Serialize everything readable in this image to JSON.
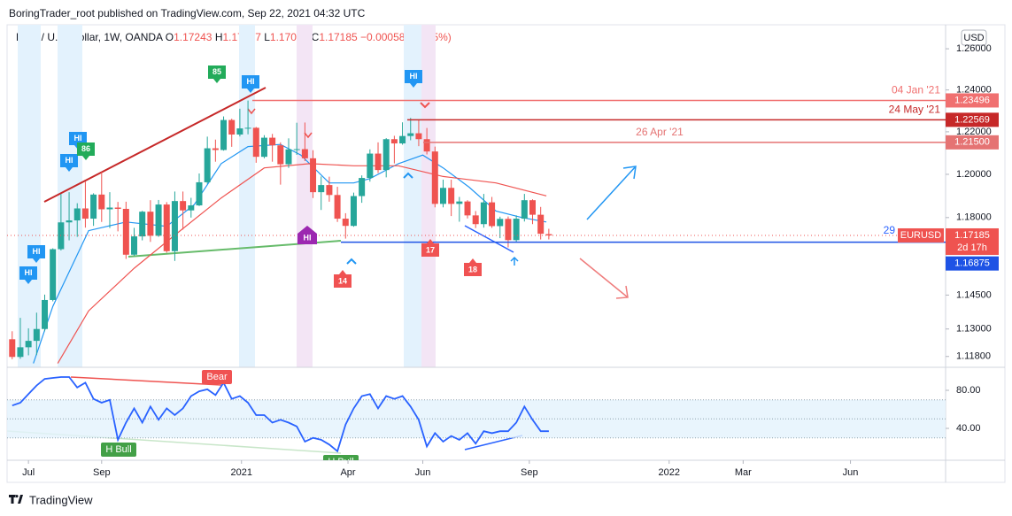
{
  "header": {
    "publisher": "BoringTrader_root published on TradingView.com, Sep 22, 2021 04:32 UTC"
  },
  "chart_data": {
    "type": "candlestick",
    "symbol": "Euro / U.S. Dollar, 1W, OANDA",
    "ohlc_prefixes": [
      "O",
      "H",
      "L",
      "C"
    ],
    "change_label": "−0.00058 (−0.05%)",
    "currency": "USD",
    "ticker": "EURUSD",
    "countdown": "2d 17h",
    "fragment": "29",
    "open": [
      1.1255,
      1.1178,
      1.122,
      1.1248,
      1.13,
      1.1428,
      1.1656,
      1.1778,
      1.1787,
      1.1842,
      1.1795,
      1.1906,
      1.1838,
      1.1846,
      1.184,
      1.1631,
      1.1714,
      1.1827,
      1.1717,
      1.186,
      1.1647,
      1.1876,
      1.1833,
      1.1856,
      1.1963,
      1.2122,
      1.2114,
      1.2256,
      1.2187,
      1.2216,
      1.2219,
      1.2082,
      1.2172,
      1.2136,
      1.2047,
      1.2117,
      1.2118,
      1.2075,
      1.1917,
      1.195,
      1.1904,
      1.1795,
      1.1762,
      1.1899,
      1.1983,
      1.2097,
      1.202,
      1.2165,
      1.2145,
      1.218,
      1.2193,
      1.2165,
      1.2107,
      1.1863,
      1.1937,
      1.1863,
      1.1874,
      1.181,
      1.177,
      1.187,
      1.1761,
      1.1794,
      1.1697,
      1.1795,
      1.188,
      1.1813,
      1.17243
    ],
    "high": [
      1.129,
      1.1349,
      1.1303,
      1.1372,
      1.1452,
      1.166,
      1.1909,
      1.1917,
      1.1866,
      1.1966,
      1.1912,
      1.2011,
      1.1917,
      1.1872,
      1.1873,
      1.1753,
      1.1831,
      1.188,
      1.1881,
      1.1871,
      1.192,
      1.192,
      1.1891,
      1.2004,
      1.2177,
      1.2163,
      1.2273,
      1.2262,
      1.231,
      1.2349,
      1.2223,
      1.2184,
      1.219,
      1.215,
      1.2169,
      1.2243,
      1.2244,
      1.2113,
      1.199,
      1.1989,
      1.1942,
      1.182,
      1.1915,
      1.1995,
      1.2117,
      1.215,
      1.217,
      1.2181,
      1.2245,
      1.2266,
      1.2254,
      1.2218,
      1.213,
      1.1975,
      1.1975,
      1.1895,
      1.188,
      1.183,
      1.1909,
      1.1895,
      1.1804,
      1.1805,
      1.181,
      1.1909,
      1.1884,
      1.1849,
      1.17487
    ],
    "low": [
      1.1168,
      1.117,
      1.1185,
      1.1186,
      1.129,
      1.1422,
      1.165,
      1.1696,
      1.1712,
      1.1754,
      1.1762,
      1.178,
      1.1752,
      1.1737,
      1.1612,
      1.1626,
      1.1696,
      1.1689,
      1.1712,
      1.164,
      1.1603,
      1.1745,
      1.18,
      1.1853,
      1.1956,
      1.2059,
      1.2111,
      1.2129,
      1.2178,
      1.2188,
      1.2054,
      1.2075,
      1.2059,
      1.1952,
      1.203,
      1.2091,
      1.2062,
      1.189,
      1.1835,
      1.1873,
      1.178,
      1.1704,
      1.1758,
      1.1868,
      1.1966,
      1.2006,
      1.1986,
      1.2051,
      1.2139,
      1.216,
      1.2132,
      1.2093,
      1.1847,
      1.1847,
      1.1807,
      1.1781,
      1.1796,
      1.1752,
      1.1754,
      1.1753,
      1.1706,
      1.1664,
      1.169,
      1.1782,
      1.177,
      1.17,
      1.17002
    ],
    "close": [
      1.1178,
      1.122,
      1.1248,
      1.13,
      1.1428,
      1.1656,
      1.1778,
      1.1787,
      1.1842,
      1.1795,
      1.1906,
      1.1838,
      1.1846,
      1.184,
      1.1631,
      1.1714,
      1.1827,
      1.1717,
      1.186,
      1.1647,
      1.1876,
      1.1833,
      1.1856,
      1.1963,
      1.2122,
      1.2114,
      1.2256,
      1.2187,
      1.2216,
      1.2219,
      1.2082,
      1.2172,
      1.2136,
      1.2047,
      1.2117,
      1.2118,
      1.2075,
      1.1917,
      1.195,
      1.1904,
      1.1795,
      1.1762,
      1.1899,
      1.1983,
      1.2097,
      1.202,
      1.2165,
      1.2145,
      1.218,
      1.2193,
      1.2165,
      1.2107,
      1.1863,
      1.1937,
      1.1863,
      1.1874,
      1.181,
      1.177,
      1.187,
      1.1761,
      1.1794,
      1.1697,
      1.1795,
      1.188,
      1.1813,
      1.1726,
      1.17185
    ],
    "up_color": "#26a69a",
    "down_color": "#ef5350",
    "log_scale": true,
    "ylim": [
      1.1133,
      1.2718
    ],
    "yticks": [
      {
        "value": 1.118,
        "label": "1.11800"
      },
      {
        "value": 1.13,
        "label": "1.13000"
      },
      {
        "value": 1.145,
        "label": "1.14500"
      },
      {
        "value": 1.18,
        "label": "1.18000"
      },
      {
        "value": 1.2,
        "label": "1.20000"
      },
      {
        "value": 1.22,
        "label": "1.22000"
      },
      {
        "value": 1.24,
        "label": "1.24000"
      },
      {
        "value": 1.26,
        "label": "1.26000"
      }
    ],
    "xlim": [
      -1.5,
      114.8
    ],
    "xticks": [
      {
        "value": 2,
        "label": "Jul"
      },
      {
        "value": 11,
        "label": "Sep"
      },
      {
        "value": 28.2,
        "label": "2021"
      },
      {
        "value": 41.3,
        "label": "Apr"
      },
      {
        "value": 50.5,
        "label": "Jun"
      },
      {
        "value": 63.6,
        "label": "Sep"
      },
      {
        "value": 80.8,
        "label": "2022"
      },
      {
        "value": 89.9,
        "label": "Mar"
      },
      {
        "value": 103.1,
        "label": "Jun"
      }
    ],
    "levels": [
      {
        "value": 1.23496,
        "date": "04 Jan '21",
        "color": "#f07070"
      },
      {
        "value": 1.22569,
        "date": "24 May '21",
        "color": "#c62828"
      },
      {
        "value": 1.215,
        "label": "1.21500",
        "date": "26 Apr '21",
        "color": "#e57373"
      }
    ],
    "support": {
      "value": 1.16875,
      "color": "#1e53e5"
    },
    "moving_averages": [
      {
        "color": "#2196f3",
        "x": [
          2.6,
          5,
          9.4,
          14,
          19,
          22.4,
          25.7,
          29,
          33,
          35.5,
          39,
          42,
          44,
          47.5,
          50.5,
          53,
          56.2,
          59.5,
          62.7,
          65.7
        ],
        "values": [
          1.115,
          1.14,
          1.174,
          1.178,
          1.176,
          1.186,
          1.205,
          1.213,
          1.214,
          1.209,
          1.196,
          1.196,
          1.198,
          1.205,
          1.209,
          1.203,
          1.194,
          1.183,
          1.18,
          1.178
        ]
      },
      {
        "color": "#ef5350",
        "x": [
          5.6,
          9.4,
          15,
          20,
          25.7,
          31,
          36.6,
          42,
          47.5,
          53,
          59.5,
          65.7
        ],
        "values": [
          1.115,
          1.138,
          1.157,
          1.172,
          1.189,
          1.203,
          1.205,
          1.204,
          1.204,
          1.199,
          1.196,
          1.19
        ]
      }
    ],
    "badges": [
      {
        "text": "HI",
        "color": "#2196f3"
      },
      {
        "text": "HI",
        "color": "#2196f3"
      },
      {
        "text": "HI",
        "color": "#2196f3"
      },
      {
        "text": "HI",
        "color": "#2196f3"
      },
      {
        "text": "86",
        "color": "#22ab5a"
      },
      {
        "text": "85",
        "color": "#22ab5a"
      },
      {
        "text": "HI",
        "color": "#2196f3"
      },
      {
        "text": "HI",
        "color": "#2196f3"
      },
      {
        "text": "HI",
        "color": "#9c27b0"
      },
      {
        "text": "14",
        "color": "#f05252"
      },
      {
        "text": "17",
        "color": "#f05252"
      },
      {
        "text": "18",
        "color": "#f05252"
      }
    ],
    "oscillator": {
      "ylim": [
        6.5,
        104.2
      ],
      "yticks": [
        {
          "value": 40,
          "label": "40.00"
        },
        {
          "value": 80,
          "label": "80.00"
        }
      ],
      "levels": [
        30,
        50,
        70
      ],
      "color": "#2962ff",
      "values": [
        64,
        67,
        76,
        85,
        92,
        93,
        94,
        94,
        83,
        88,
        71,
        67,
        70,
        28,
        46,
        61,
        46,
        63,
        49,
        61,
        54,
        61,
        74,
        79,
        81,
        75,
        88,
        71,
        74,
        67,
        54,
        54,
        46,
        49,
        46,
        42,
        26,
        30,
        28,
        23,
        16,
        44,
        61,
        74,
        76,
        61,
        74,
        71,
        74,
        63,
        49,
        21,
        35,
        26,
        32,
        28,
        35,
        24,
        37,
        35,
        37,
        37,
        46,
        63,
        49,
        37,
        37
      ],
      "tags": [
        {
          "text": "Bear",
          "color": "#f05252"
        },
        {
          "text": "H Bull",
          "color": "#43a047"
        },
        {
          "text": "H Bull",
          "color": "#43a047"
        }
      ]
    }
  },
  "footer": {
    "brand": "TradingView"
  }
}
